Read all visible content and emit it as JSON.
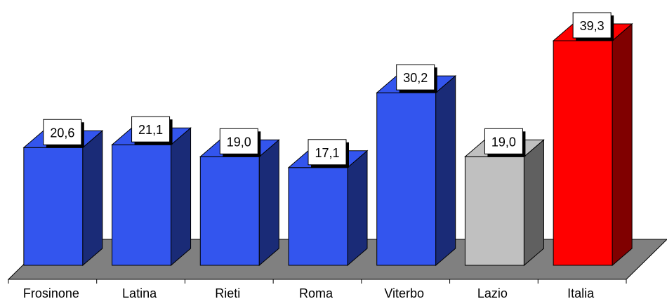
{
  "chart_data": {
    "type": "bar",
    "title": "",
    "xlabel": "",
    "ylabel": "",
    "categories": [
      "Frosinone",
      "Latina",
      "Rieti",
      "Roma",
      "Viterbo",
      "Lazio",
      "Italia"
    ],
    "values": [
      20.6,
      21.1,
      19.0,
      17.1,
      30.2,
      19.0,
      39.3
    ],
    "value_labels": [
      "20,6",
      "21,1",
      "19,0",
      "17,1",
      "30,2",
      "19,0",
      "39,3"
    ],
    "colors": [
      "#3355ee",
      "#3355ee",
      "#3355ee",
      "#3355ee",
      "#3355ee",
      "#c0c0c0",
      "#ff0000"
    ],
    "ylim": [
      0,
      39.3
    ],
    "grid": false,
    "legend": "none",
    "style": "3d-bars"
  }
}
